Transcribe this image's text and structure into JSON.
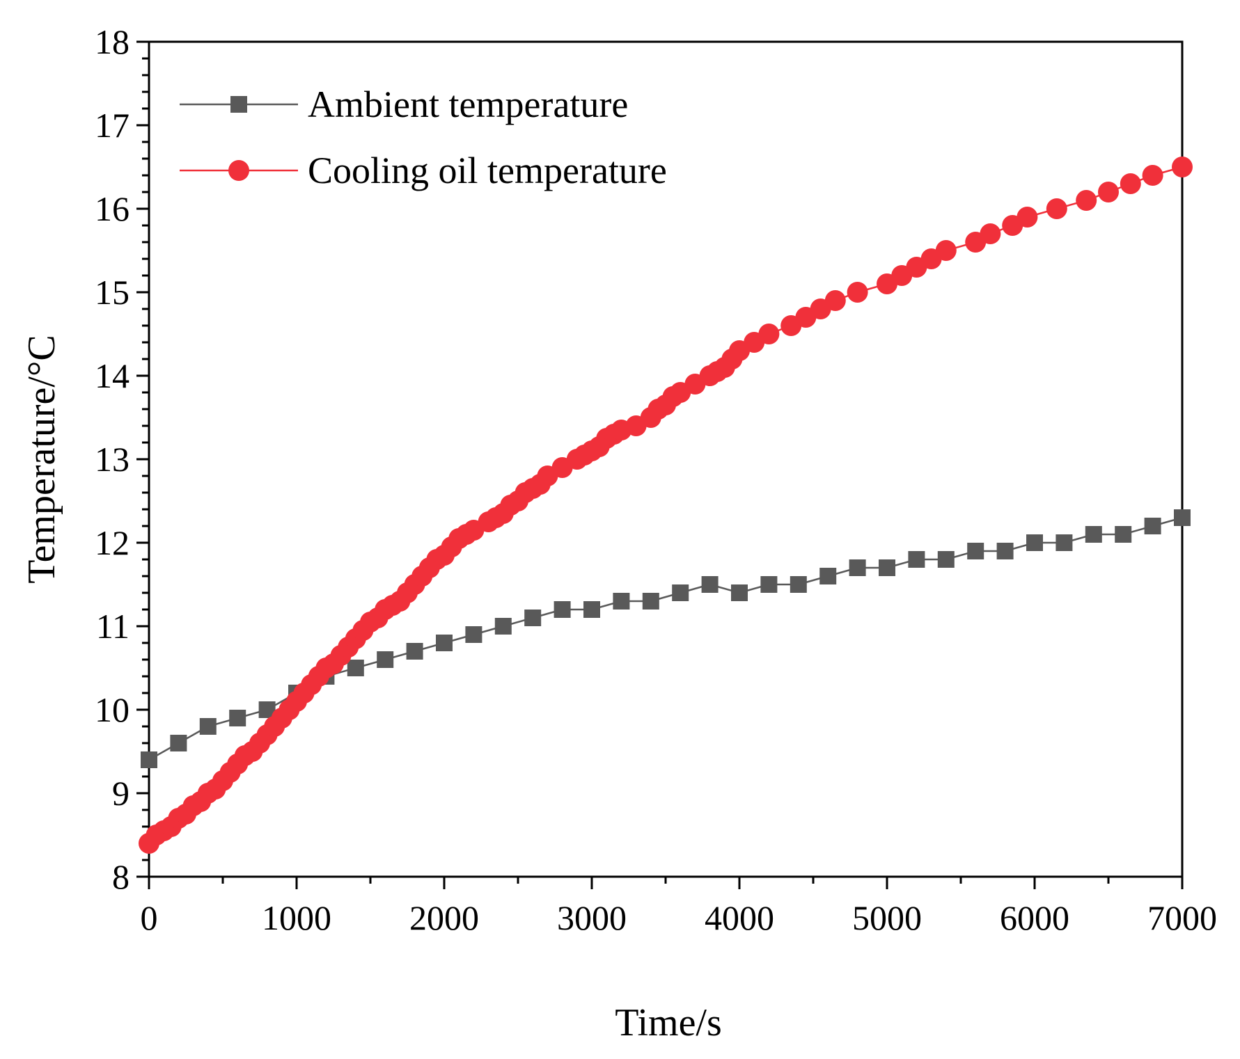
{
  "chart_data": {
    "type": "line",
    "xlabel": "Time/s",
    "ylabel": "Temperature/°C",
    "xlim": [
      0,
      7000
    ],
    "ylim": [
      8,
      18
    ],
    "xticks": [
      0,
      1000,
      2000,
      3000,
      4000,
      5000,
      6000,
      7000
    ],
    "yticks": [
      8,
      9,
      10,
      11,
      12,
      13,
      14,
      15,
      16,
      17,
      18
    ],
    "xtick_labels": [
      "0",
      "1000",
      "2000",
      "3000",
      "4000",
      "5000",
      "6000",
      "7000"
    ],
    "ytick_labels": [
      "8",
      "9",
      "10",
      "11",
      "12",
      "13",
      "14",
      "15",
      "16",
      "17",
      "18"
    ],
    "grid": false,
    "legend_position": "top-left",
    "series": [
      {
        "name": "Ambient temperature",
        "color": "#595959",
        "marker": "square",
        "x": [
          0,
          200,
          400,
          600,
          800,
          1000,
          1200,
          1400,
          1600,
          1800,
          2000,
          2200,
          2400,
          2600,
          2800,
          3000,
          3200,
          3400,
          3600,
          3800,
          4000,
          4200,
          4400,
          4600,
          4800,
          5000,
          5200,
          5400,
          5600,
          5800,
          6000,
          6200,
          6400,
          6600,
          6800,
          7000
        ],
        "y": [
          9.4,
          9.6,
          9.8,
          9.9,
          10.0,
          10.2,
          10.4,
          10.5,
          10.6,
          10.7,
          10.8,
          10.9,
          11.0,
          11.1,
          11.2,
          11.2,
          11.3,
          11.3,
          11.4,
          11.5,
          11.4,
          11.5,
          11.5,
          11.6,
          11.7,
          11.7,
          11.8,
          11.8,
          11.9,
          11.9,
          12.0,
          12.0,
          12.1,
          12.1,
          12.2,
          12.3
        ]
      },
      {
        "name": "Cooling oil temperature",
        "color": "#f0303a",
        "marker": "circle",
        "x": [
          0,
          50,
          100,
          150,
          200,
          250,
          300,
          350,
          400,
          450,
          500,
          550,
          600,
          650,
          700,
          750,
          800,
          850,
          900,
          950,
          1000,
          1050,
          1100,
          1150,
          1200,
          1250,
          1300,
          1350,
          1400,
          1450,
          1500,
          1550,
          1600,
          1650,
          1700,
          1750,
          1800,
          1850,
          1900,
          1950,
          2000,
          2050,
          2100,
          2150,
          2200,
          2300,
          2350,
          2400,
          2450,
          2500,
          2550,
          2600,
          2650,
          2700,
          2800,
          2900,
          2950,
          3000,
          3050,
          3100,
          3150,
          3200,
          3300,
          3400,
          3450,
          3500,
          3550,
          3600,
          3700,
          3800,
          3850,
          3900,
          3950,
          4000,
          4100,
          4200,
          4350,
          4450,
          4550,
          4650,
          4800,
          5000,
          5100,
          5200,
          5300,
          5400,
          5600,
          5700,
          5850,
          5950,
          6150,
          6350,
          6500,
          6650,
          6800,
          7000
        ],
        "y": [
          8.4,
          8.5,
          8.55,
          8.6,
          8.7,
          8.75,
          8.85,
          8.9,
          9.0,
          9.05,
          9.15,
          9.25,
          9.35,
          9.45,
          9.5,
          9.6,
          9.7,
          9.8,
          9.9,
          10.0,
          10.1,
          10.2,
          10.3,
          10.4,
          10.5,
          10.55,
          10.65,
          10.75,
          10.85,
          10.95,
          11.05,
          11.1,
          11.2,
          11.25,
          11.3,
          11.4,
          11.5,
          11.6,
          11.7,
          11.8,
          11.85,
          11.95,
          12.05,
          12.1,
          12.15,
          12.25,
          12.3,
          12.35,
          12.45,
          12.5,
          12.6,
          12.65,
          12.7,
          12.8,
          12.9,
          13.0,
          13.05,
          13.1,
          13.15,
          13.25,
          13.3,
          13.35,
          13.4,
          13.5,
          13.6,
          13.65,
          13.75,
          13.8,
          13.9,
          14.0,
          14.05,
          14.1,
          14.2,
          14.3,
          14.4,
          14.5,
          14.6,
          14.7,
          14.8,
          14.9,
          15.0,
          15.1,
          15.2,
          15.3,
          15.4,
          15.5,
          15.6,
          15.7,
          15.8,
          15.9,
          16.0,
          16.1,
          16.2,
          16.3,
          16.4,
          16.5
        ]
      }
    ]
  }
}
